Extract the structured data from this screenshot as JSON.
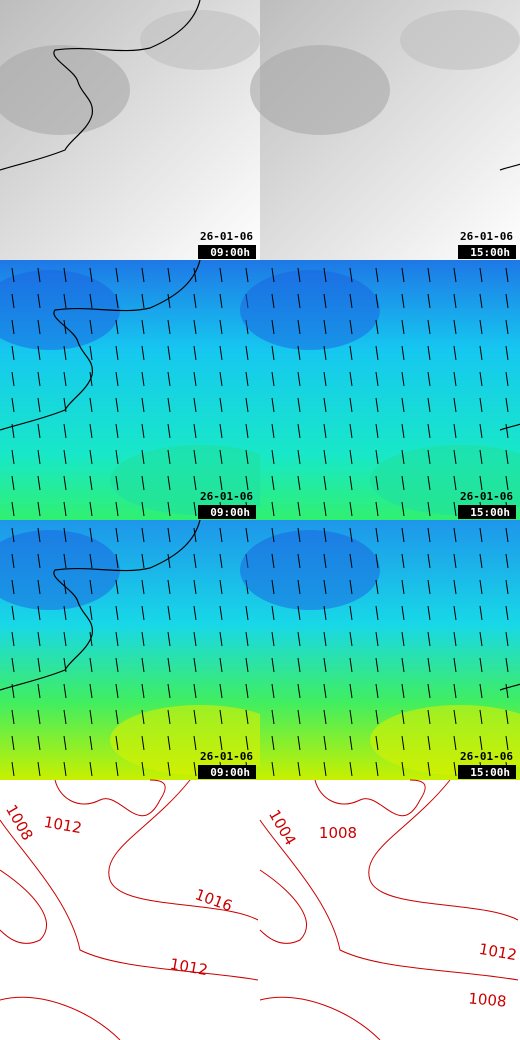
{
  "panels": [
    {
      "date": "26-01-06",
      "time": "09:00h"
    },
    {
      "date": "26-01-06",
      "time": "15:00h"
    },
    {
      "date": "26-01-06",
      "time": "09:00h"
    },
    {
      "date": "26-01-06",
      "time": "15:00h"
    },
    {
      "date": "26-01-06",
      "time": "09:00h"
    },
    {
      "date": "26-01-06",
      "time": "15:00h"
    }
  ],
  "isobars": [
    {
      "labels": [
        "1008",
        "1012",
        "1016",
        "1012"
      ]
    },
    {
      "labels": [
        "1004",
        "1008",
        "1012",
        "1008"
      ]
    }
  ]
}
